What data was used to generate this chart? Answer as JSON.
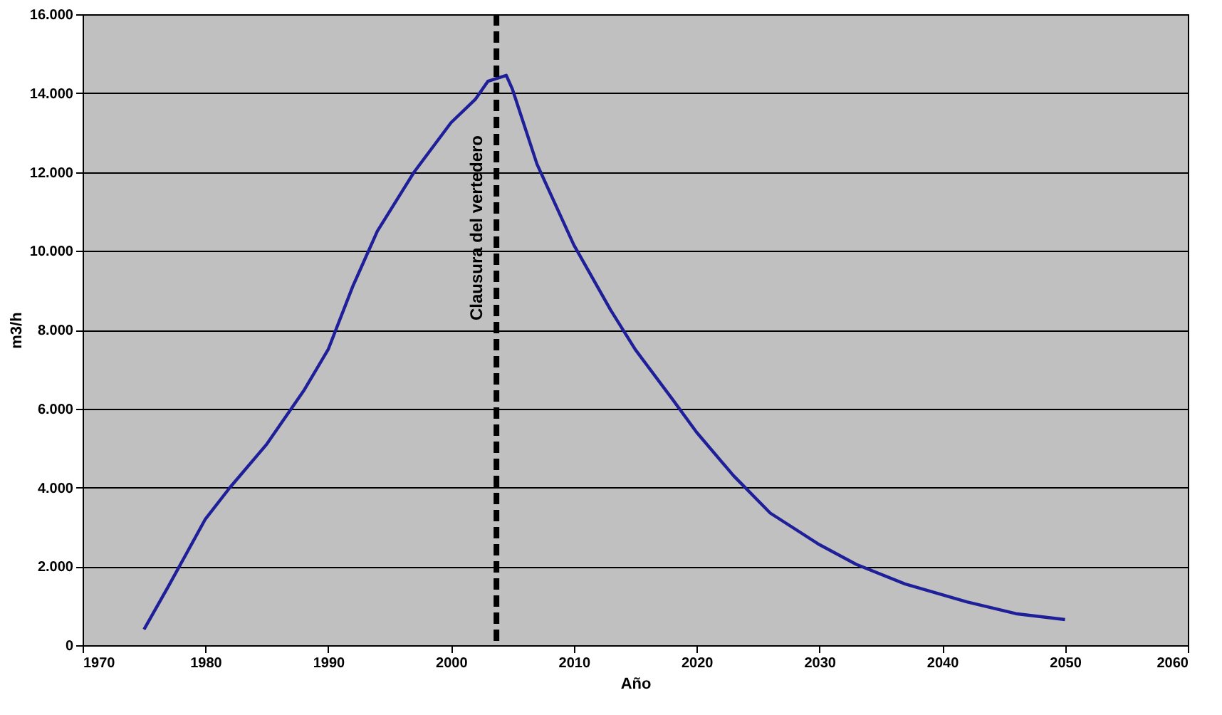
{
  "chart_data": {
    "type": "line",
    "xlabel": "Año",
    "ylabel": "m3/h",
    "x": [
      1975,
      1977,
      1980,
      1982,
      1985,
      1988,
      1990,
      1992,
      1994,
      1997,
      2000,
      2002,
      2003,
      2004.5,
      2005,
      2007,
      2010,
      2013,
      2015,
      2018,
      2020,
      2023,
      2026,
      2030,
      2033,
      2037,
      2042,
      2046,
      2050
    ],
    "series": [
      {
        "color": "#1f1f99",
        "values": [
          400,
          1500,
          3200,
          4000,
          5100,
          6450,
          7500,
          9100,
          10500,
          12000,
          13250,
          13850,
          14300,
          14450,
          14100,
          12200,
          10150,
          8500,
          7500,
          6250,
          5400,
          4300,
          3350,
          2550,
          2050,
          1550,
          1100,
          800,
          650
        ]
      }
    ],
    "xlim": [
      1970,
      2060
    ],
    "xticks": [
      1970,
      1980,
      1990,
      2000,
      2010,
      2020,
      2030,
      2040,
      2050,
      2060
    ],
    "ylim": [
      0,
      16000
    ],
    "yticks": [
      0,
      {
        "value": 2000,
        "label": "2.000"
      },
      {
        "value": 4000,
        "label": "4.000"
      },
      {
        "value": 6000,
        "label": "6.000"
      },
      {
        "value": 8000,
        "label": "8.000"
      },
      {
        "value": 10000,
        "label": "10.000"
      },
      {
        "value": 12000,
        "label": "12.000"
      },
      {
        "value": 14000,
        "label": "14.000"
      },
      {
        "value": 16000,
        "label": "16.000"
      }
    ],
    "grid": "y",
    "marker": "none",
    "line_style": "solid",
    "ref_lines": [
      {
        "axis": "x",
        "value": 2003.7,
        "label": "Clausura del vertedero",
        "color": "#000000",
        "line_style": "dashed"
      }
    ]
  }
}
